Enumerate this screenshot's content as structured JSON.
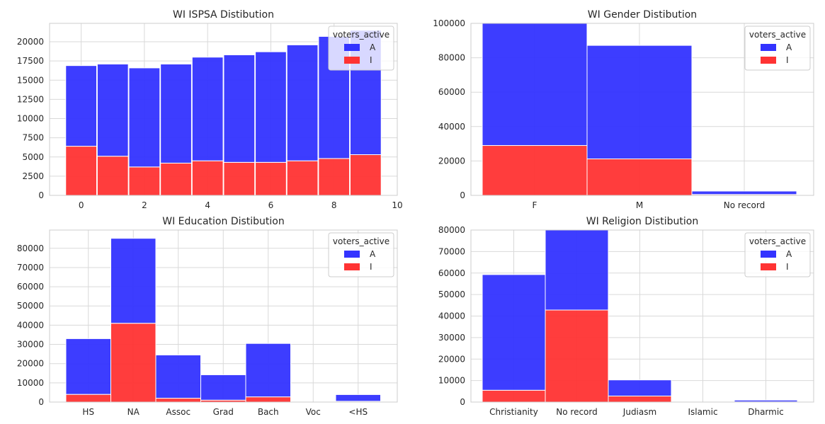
{
  "colors": {
    "A": "#3333ff",
    "I": "#ff3333",
    "grid": "#d9d9d9",
    "background": "#ffffff"
  },
  "chart_data": [
    {
      "type": "bar",
      "title": "WI ISPSA Distibution",
      "x_numeric": true,
      "categories": [
        "0",
        "1",
        "2",
        "3",
        "4",
        "5",
        "6",
        "7",
        "8",
        "9"
      ],
      "x_ticks": [
        0,
        2,
        4,
        6,
        8,
        10
      ],
      "xlim": [
        -1,
        10
      ],
      "y_ticks": [
        0,
        2500,
        5000,
        7500,
        10000,
        12500,
        15000,
        17500,
        20000
      ],
      "ylim": [
        0,
        22400
      ],
      "legend_title": "voters_active",
      "legend_position": "top-right",
      "series": [
        {
          "name": "A",
          "values": [
            10500,
            12000,
            12900,
            12900,
            13500,
            14000,
            14400,
            15100,
            15900,
            16200
          ]
        },
        {
          "name": "I",
          "values": [
            6400,
            5100,
            3700,
            4200,
            4500,
            4300,
            4300,
            4500,
            4800,
            5300
          ]
        }
      ]
    },
    {
      "type": "bar",
      "title": "WI Gender Distibution",
      "categories": [
        "F",
        "M",
        "No record"
      ],
      "y_ticks": [
        0,
        20000,
        40000,
        60000,
        80000,
        100000
      ],
      "ylim": [
        0,
        100000
      ],
      "legend_title": "voters_active",
      "legend_position": "top-right",
      "series": [
        {
          "name": "A",
          "values": [
            71000,
            66000,
            2000
          ]
        },
        {
          "name": "I",
          "values": [
            29000,
            21200,
            500
          ]
        }
      ]
    },
    {
      "type": "bar",
      "title": "WI Education Distibution",
      "categories": [
        "HS",
        "NA",
        "Assoc",
        "Grad",
        "Bach",
        "Voc",
        "<HS"
      ],
      "y_ticks": [
        0,
        10000,
        20000,
        30000,
        40000,
        50000,
        60000,
        70000,
        80000
      ],
      "ylim": [
        0,
        89500
      ],
      "legend_title": "voters_active",
      "legend_position": "top-right",
      "series": [
        {
          "name": "A",
          "values": [
            29000,
            44200,
            22500,
            13200,
            27800,
            0,
            3500
          ]
        },
        {
          "name": "I",
          "values": [
            4000,
            41000,
            2000,
            1000,
            2700,
            0,
            400
          ]
        }
      ]
    },
    {
      "type": "bar",
      "title": "WI Religion Distibution",
      "categories": [
        "Christianity",
        "No record",
        "Judiasm",
        "Islamic",
        "Dharmic"
      ],
      "y_ticks": [
        0,
        10000,
        20000,
        30000,
        40000,
        50000,
        60000,
        70000,
        80000
      ],
      "ylim": [
        0,
        80000
      ],
      "legend_title": "voters_active",
      "legend_position": "top-right",
      "series": [
        {
          "name": "A",
          "values": [
            53800,
            37200,
            7500,
            0,
            800
          ]
        },
        {
          "name": "I",
          "values": [
            5500,
            42800,
            2800,
            0,
            100
          ]
        }
      ]
    }
  ]
}
